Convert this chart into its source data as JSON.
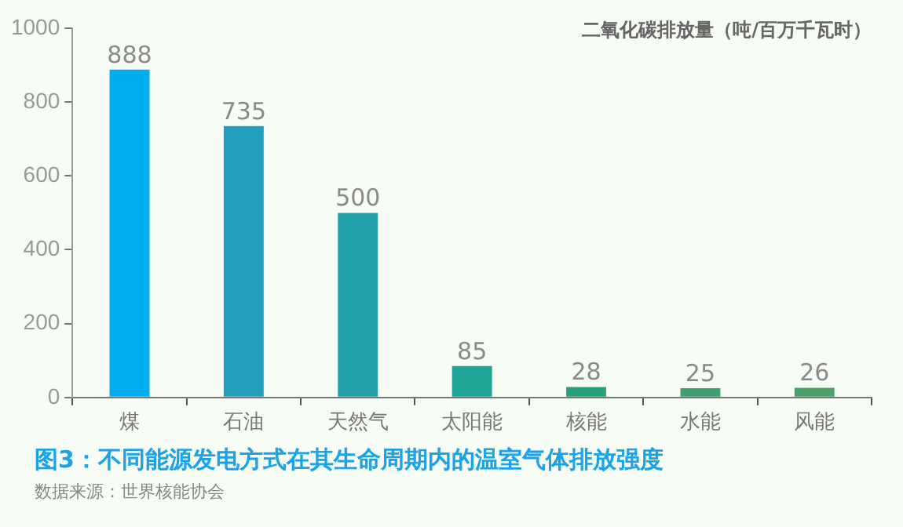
{
  "chart_data": {
    "type": "bar",
    "title": "图3：不同能源发电方式在其生命周期内的温室气体排放强度",
    "ylabel": "二氧化碳排放量（吨/百万千瓦时）",
    "categories": [
      "煤",
      "石油",
      "天然气",
      "太阳能",
      "核能",
      "水能",
      "风能"
    ],
    "values": [
      888,
      735,
      500,
      85,
      28,
      25,
      26
    ],
    "colors": [
      "#00aeef",
      "#22a0bd",
      "#22a0a8",
      "#1fa596",
      "#27a07e",
      "#3d9f6e",
      "#4ca06a"
    ],
    "ylim": [
      0,
      1000
    ],
    "yticks": [
      0,
      200,
      400,
      600,
      800,
      1000
    ],
    "grid": false,
    "legend": false,
    "data_labels": true,
    "annotations": [
      "数据来源：世界核能协会"
    ]
  }
}
